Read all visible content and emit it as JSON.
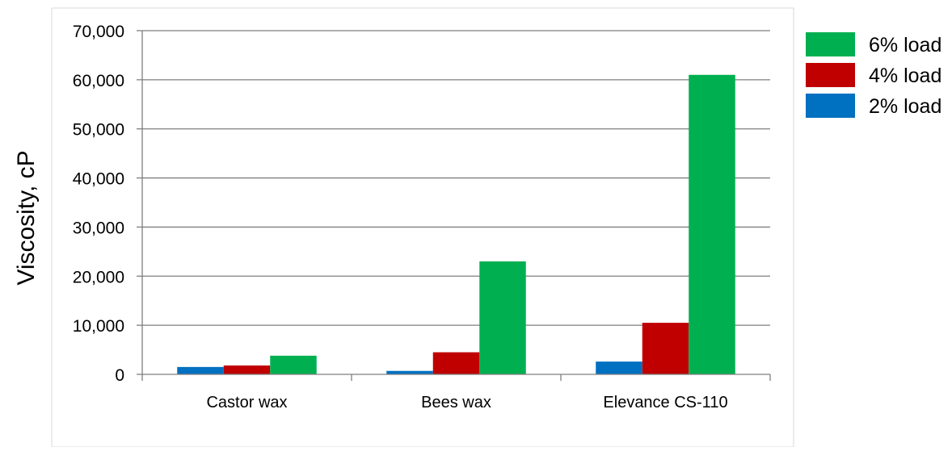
{
  "chart_data": {
    "type": "bar",
    "categories": [
      "Castor wax",
      "Bees wax",
      "Elevance CS-110"
    ],
    "series": [
      {
        "name": "2% load",
        "color": "#0070c0",
        "values": [
          1500,
          700,
          2600
        ]
      },
      {
        "name": "4% load",
        "color": "#c00000",
        "values": [
          1800,
          4500,
          10500
        ]
      },
      {
        "name": "6% load",
        "color": "#00b050",
        "values": [
          3800,
          23000,
          61000
        ]
      }
    ],
    "title": "",
    "xlabel": "",
    "ylabel": "Viscosity, cP",
    "ylim": [
      0,
      70000
    ],
    "yticks": [
      0,
      10000,
      20000,
      30000,
      40000,
      50000,
      60000,
      70000
    ],
    "ytick_labels": [
      "0",
      "10,000",
      "20,000",
      "30,000",
      "40,000",
      "50,000",
      "60,000",
      "70,000"
    ],
    "grid": true,
    "legend_position": "top-right",
    "legend_order": [
      "6% load",
      "4% load",
      "2% load"
    ]
  }
}
